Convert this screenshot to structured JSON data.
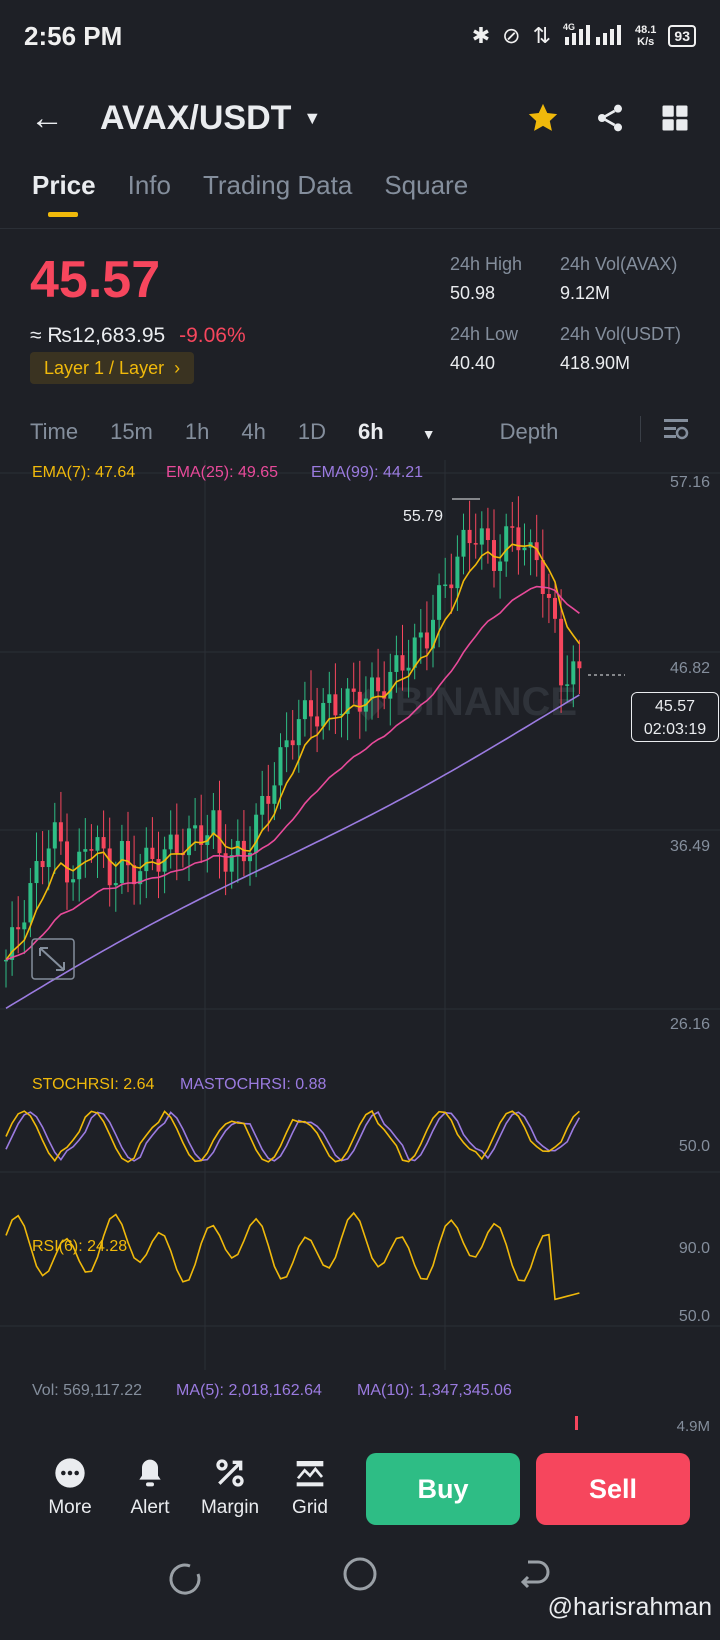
{
  "status_bar": {
    "time": "2:56 PM",
    "net_speed": "48.1",
    "net_unit": "K/s",
    "battery": "93",
    "network": "4G"
  },
  "header": {
    "pair": "AVAX/USDT"
  },
  "tabs": [
    "Price",
    "Info",
    "Trading Data",
    "Square"
  ],
  "price": {
    "last": "45.57",
    "fiat": "≈ ₨12,683.95",
    "change": "-9.06%",
    "tag": "Layer 1 / Layer",
    "high_label": "24h High",
    "high": "50.98",
    "low_label": "24h Low",
    "low": "40.40",
    "vol_base_label": "24h Vol(AVAX)",
    "vol_base": "9.12M",
    "vol_quote_label": "24h Vol(USDT)",
    "vol_quote": "418.90M"
  },
  "intervals": {
    "items": [
      "Time",
      "15m",
      "1h",
      "4h",
      "1D"
    ],
    "selected": "6h",
    "depth": "Depth"
  },
  "chart": {
    "ema7": "EMA(7): 47.64",
    "ema25": "EMA(25): 49.65",
    "ema99": "EMA(99): 44.21",
    "axis": [
      "57.16",
      "46.82",
      "36.49",
      "26.16"
    ],
    "peak_label": "55.79",
    "current_price": "45.57",
    "countdown": "02:03:19",
    "stoch_label": "STOCHRSI: 2.64",
    "mastoch_label": "MASTOCHRSI: 0.88",
    "stoch_axis": "50.0",
    "rsi_label": "RSI(6): 24.28",
    "rsi_axis_top": "90.0",
    "rsi_axis_mid": "50.0",
    "vol_label": "Vol: 569,117.22",
    "vol_ma5": "MA(5): 2,018,162.64",
    "vol_ma10": "MA(10): 1,347,345.06",
    "vol_axis": "4.9M",
    "colors": {
      "up": "#2ebd85",
      "down": "#f6465d",
      "ema7": "#f0b90b",
      "ema25": "#e84a9a",
      "ema99": "#9b7be0"
    }
  },
  "bottom_bar": {
    "more": "More",
    "alert": "Alert",
    "margin": "Margin",
    "grid": "Grid",
    "buy": "Buy",
    "sell": "Sell"
  },
  "watermark": "@harisrahman"
}
